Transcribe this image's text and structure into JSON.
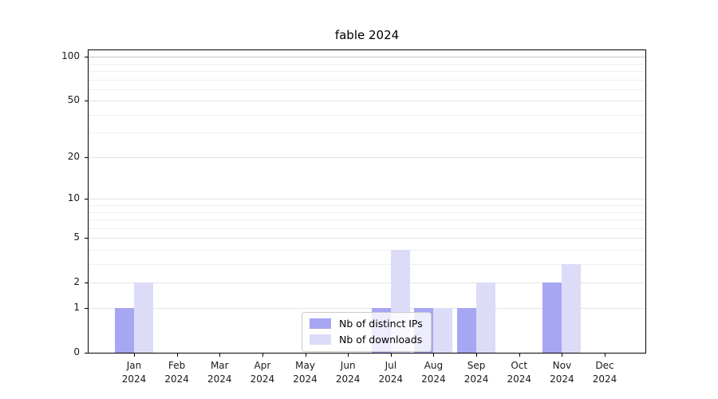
{
  "chart_data": {
    "type": "bar",
    "title": "fable 2024",
    "categories": [
      "Jan 2024",
      "Feb 2024",
      "Mar 2024",
      "Apr 2024",
      "May 2024",
      "Jun 2024",
      "Jul 2024",
      "Aug 2024",
      "Sep 2024",
      "Oct 2024",
      "Nov 2024",
      "Dec 2024"
    ],
    "series": [
      {
        "name": "Nb of distinct IPs",
        "color": "#a6a6f2",
        "values": [
          1,
          0,
          0,
          0,
          0,
          0,
          1,
          1,
          1,
          0,
          2,
          0
        ]
      },
      {
        "name": "Nb of downloads",
        "color": "#dcdcf8",
        "values": [
          2,
          0,
          0,
          0,
          0,
          0,
          4,
          1,
          2,
          0,
          3,
          0
        ]
      }
    ],
    "xlabel": "",
    "ylabel": "",
    "yscale": "log1p",
    "yticks": [
      0,
      1,
      2,
      5,
      10,
      20,
      50,
      100
    ],
    "minor_gridlines": [
      3,
      4,
      6,
      7,
      8,
      9,
      30,
      40,
      60,
      70,
      80,
      90
    ],
    "ylim": [
      0,
      111
    ],
    "grid": true,
    "legend_position": "lower center"
  },
  "colors": {
    "axis": "#000000",
    "grid_minor": "#efefef",
    "grid_major": "#e3e3e3",
    "grid_top": "#c4c4c4",
    "text": "#1a1a1a",
    "legend_border": "#cccccc"
  }
}
